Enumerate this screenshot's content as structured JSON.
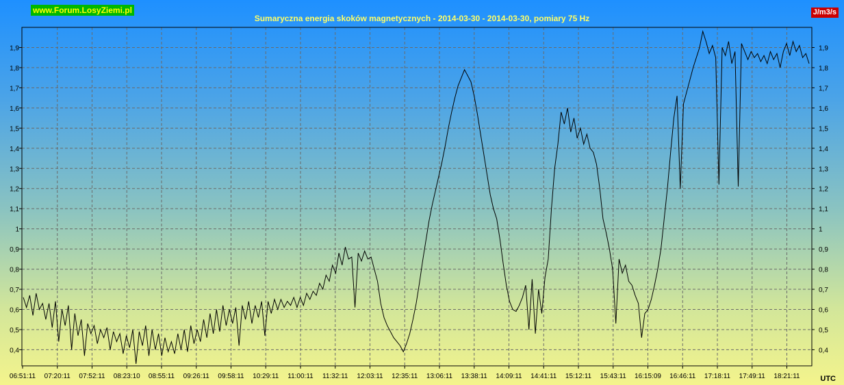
{
  "watermark": "www.Forum.LosyZiemi.pl",
  "unit_badge": "J/m3/s",
  "utc_label": "UTC",
  "chart_data": {
    "type": "line",
    "title": "Sumaryczna energia skoków magnetycznych - 2014-03-30 - 2014-03-30, pomiary 75 Hz",
    "xlabel": "",
    "ylabel": "",
    "ylim": [
      0.32,
      2.0
    ],
    "grid": true,
    "y_ticks": [
      "0,4",
      "0,5",
      "0,6",
      "0,7",
      "0,8",
      "0,9",
      "1",
      "1,1",
      "1,2",
      "1,3",
      "1,4",
      "1,5",
      "1,6",
      "1,7",
      "1,8",
      "1,9"
    ],
    "x_ticks": [
      "06:51:11",
      "07:20:11",
      "07:52:11",
      "08:23:10",
      "08:55:11",
      "09:26:11",
      "09:58:11",
      "10:29:11",
      "11:00:11",
      "11:32:11",
      "12:03:11",
      "12:35:11",
      "13:06:11",
      "13:38:11",
      "14:09:11",
      "14:41:11",
      "15:12:11",
      "15:43:11",
      "16:15:09",
      "16:46:11",
      "17:18:11",
      "17:49:11",
      "18:21:11"
    ],
    "series": [
      {
        "color": "#000000",
        "points": [
          [
            0,
            0.66
          ],
          [
            2,
            0.61
          ],
          [
            4,
            0.67
          ],
          [
            6,
            0.57
          ],
          [
            8,
            0.68
          ],
          [
            10,
            0.6
          ],
          [
            12,
            0.63
          ],
          [
            14,
            0.55
          ],
          [
            16,
            0.63
          ],
          [
            18,
            0.51
          ],
          [
            20,
            0.64
          ],
          [
            22,
            0.44
          ],
          [
            24,
            0.6
          ],
          [
            26,
            0.52
          ],
          [
            28,
            0.62
          ],
          [
            30,
            0.4
          ],
          [
            32,
            0.58
          ],
          [
            34,
            0.47
          ],
          [
            36,
            0.55
          ],
          [
            38,
            0.37
          ],
          [
            40,
            0.53
          ],
          [
            42,
            0.48
          ],
          [
            44,
            0.52
          ],
          [
            46,
            0.43
          ],
          [
            48,
            0.5
          ],
          [
            50,
            0.46
          ],
          [
            52,
            0.51
          ],
          [
            54,
            0.4
          ],
          [
            56,
            0.49
          ],
          [
            58,
            0.44
          ],
          [
            60,
            0.48
          ],
          [
            62,
            0.38
          ],
          [
            64,
            0.47
          ],
          [
            66,
            0.41
          ],
          [
            68,
            0.5
          ],
          [
            70,
            0.33
          ],
          [
            72,
            0.49
          ],
          [
            74,
            0.42
          ],
          [
            76,
            0.52
          ],
          [
            78,
            0.37
          ],
          [
            80,
            0.5
          ],
          [
            82,
            0.4
          ],
          [
            84,
            0.48
          ],
          [
            86,
            0.37
          ],
          [
            88,
            0.46
          ],
          [
            90,
            0.39
          ],
          [
            92,
            0.44
          ],
          [
            94,
            0.38
          ],
          [
            96,
            0.48
          ],
          [
            98,
            0.4
          ],
          [
            100,
            0.5
          ],
          [
            102,
            0.39
          ],
          [
            104,
            0.52
          ],
          [
            106,
            0.43
          ],
          [
            108,
            0.5
          ],
          [
            110,
            0.44
          ],
          [
            112,
            0.55
          ],
          [
            114,
            0.46
          ],
          [
            116,
            0.58
          ],
          [
            118,
            0.48
          ],
          [
            120,
            0.6
          ],
          [
            122,
            0.49
          ],
          [
            124,
            0.62
          ],
          [
            126,
            0.52
          ],
          [
            128,
            0.6
          ],
          [
            130,
            0.53
          ],
          [
            132,
            0.61
          ],
          [
            134,
            0.42
          ],
          [
            136,
            0.62
          ],
          [
            138,
            0.55
          ],
          [
            140,
            0.64
          ],
          [
            142,
            0.53
          ],
          [
            144,
            0.62
          ],
          [
            146,
            0.56
          ],
          [
            148,
            0.64
          ],
          [
            150,
            0.47
          ],
          [
            152,
            0.64
          ],
          [
            154,
            0.58
          ],
          [
            156,
            0.65
          ],
          [
            158,
            0.6
          ],
          [
            160,
            0.65
          ],
          [
            162,
            0.61
          ],
          [
            164,
            0.64
          ],
          [
            166,
            0.62
          ],
          [
            168,
            0.66
          ],
          [
            170,
            0.61
          ],
          [
            172,
            0.66
          ],
          [
            174,
            0.62
          ],
          [
            176,
            0.68
          ],
          [
            178,
            0.65
          ],
          [
            180,
            0.69
          ],
          [
            182,
            0.67
          ],
          [
            184,
            0.73
          ],
          [
            186,
            0.7
          ],
          [
            188,
            0.77
          ],
          [
            190,
            0.74
          ],
          [
            192,
            0.82
          ],
          [
            194,
            0.78
          ],
          [
            196,
            0.88
          ],
          [
            198,
            0.82
          ],
          [
            200,
            0.91
          ],
          [
            202,
            0.85
          ],
          [
            204,
            0.86
          ],
          [
            206,
            0.61
          ],
          [
            208,
            0.88
          ],
          [
            210,
            0.84
          ],
          [
            212,
            0.89
          ],
          [
            214,
            0.85
          ],
          [
            216,
            0.86
          ],
          [
            218,
            0.8
          ],
          [
            220,
            0.74
          ],
          [
            222,
            0.63
          ],
          [
            224,
            0.56
          ],
          [
            226,
            0.52
          ],
          [
            228,
            0.49
          ],
          [
            230,
            0.46
          ],
          [
            232,
            0.44
          ],
          [
            234,
            0.42
          ],
          [
            236,
            0.39
          ],
          [
            238,
            0.43
          ],
          [
            240,
            0.48
          ],
          [
            242,
            0.55
          ],
          [
            244,
            0.63
          ],
          [
            246,
            0.73
          ],
          [
            248,
            0.84
          ],
          [
            250,
            0.94
          ],
          [
            252,
            1.04
          ],
          [
            254,
            1.12
          ],
          [
            256,
            1.19
          ],
          [
            258,
            1.26
          ],
          [
            260,
            1.33
          ],
          [
            262,
            1.41
          ],
          [
            264,
            1.5
          ],
          [
            266,
            1.58
          ],
          [
            268,
            1.65
          ],
          [
            270,
            1.71
          ],
          [
            272,
            1.75
          ],
          [
            274,
            1.79
          ],
          [
            276,
            1.76
          ],
          [
            278,
            1.73
          ],
          [
            280,
            1.66
          ],
          [
            282,
            1.57
          ],
          [
            284,
            1.47
          ],
          [
            286,
            1.37
          ],
          [
            288,
            1.27
          ],
          [
            290,
            1.17
          ],
          [
            292,
            1.1
          ],
          [
            294,
            1.05
          ],
          [
            296,
            0.95
          ],
          [
            298,
            0.83
          ],
          [
            300,
            0.72
          ],
          [
            302,
            0.64
          ],
          [
            304,
            0.6
          ],
          [
            306,
            0.59
          ],
          [
            308,
            0.62
          ],
          [
            310,
            0.66
          ],
          [
            312,
            0.72
          ],
          [
            314,
            0.5
          ],
          [
            316,
            0.75
          ],
          [
            318,
            0.48
          ],
          [
            320,
            0.7
          ],
          [
            322,
            0.58
          ],
          [
            324,
            0.76
          ],
          [
            326,
            0.85
          ],
          [
            328,
            1.1
          ],
          [
            330,
            1.3
          ],
          [
            332,
            1.42
          ],
          [
            334,
            1.58
          ],
          [
            336,
            1.52
          ],
          [
            338,
            1.6
          ],
          [
            340,
            1.48
          ],
          [
            342,
            1.55
          ],
          [
            344,
            1.45
          ],
          [
            346,
            1.5
          ],
          [
            348,
            1.42
          ],
          [
            350,
            1.47
          ],
          [
            352,
            1.4
          ],
          [
            354,
            1.38
          ],
          [
            356,
            1.32
          ],
          [
            358,
            1.2
          ],
          [
            360,
            1.05
          ],
          [
            362,
            0.98
          ],
          [
            364,
            0.9
          ],
          [
            366,
            0.8
          ],
          [
            368,
            0.53
          ],
          [
            370,
            0.85
          ],
          [
            372,
            0.78
          ],
          [
            374,
            0.82
          ],
          [
            376,
            0.74
          ],
          [
            378,
            0.72
          ],
          [
            380,
            0.67
          ],
          [
            382,
            0.63
          ],
          [
            384,
            0.46
          ],
          [
            386,
            0.58
          ],
          [
            388,
            0.6
          ],
          [
            390,
            0.65
          ],
          [
            392,
            0.72
          ],
          [
            394,
            0.8
          ],
          [
            396,
            0.9
          ],
          [
            398,
            1.05
          ],
          [
            400,
            1.2
          ],
          [
            402,
            1.38
          ],
          [
            404,
            1.55
          ],
          [
            406,
            1.66
          ],
          [
            408,
            1.2
          ],
          [
            410,
            1.62
          ],
          [
            412,
            1.68
          ],
          [
            414,
            1.74
          ],
          [
            416,
            1.8
          ],
          [
            418,
            1.85
          ],
          [
            420,
            1.9
          ],
          [
            422,
            1.98
          ],
          [
            424,
            1.93
          ],
          [
            426,
            1.87
          ],
          [
            428,
            1.91
          ],
          [
            430,
            1.85
          ],
          [
            432,
            1.22
          ],
          [
            434,
            1.9
          ],
          [
            436,
            1.86
          ],
          [
            438,
            1.93
          ],
          [
            440,
            1.82
          ],
          [
            442,
            1.88
          ],
          [
            444,
            1.21
          ],
          [
            446,
            1.92
          ],
          [
            448,
            1.88
          ],
          [
            450,
            1.84
          ],
          [
            452,
            1.88
          ],
          [
            454,
            1.85
          ],
          [
            456,
            1.87
          ],
          [
            458,
            1.83
          ],
          [
            460,
            1.86
          ],
          [
            462,
            1.82
          ],
          [
            464,
            1.88
          ],
          [
            466,
            1.84
          ],
          [
            468,
            1.87
          ],
          [
            470,
            1.8
          ],
          [
            472,
            1.88
          ],
          [
            474,
            1.92
          ],
          [
            476,
            1.86
          ],
          [
            478,
            1.93
          ],
          [
            480,
            1.88
          ],
          [
            482,
            1.91
          ],
          [
            484,
            1.85
          ],
          [
            486,
            1.87
          ],
          [
            488,
            1.82
          ]
        ]
      }
    ]
  }
}
